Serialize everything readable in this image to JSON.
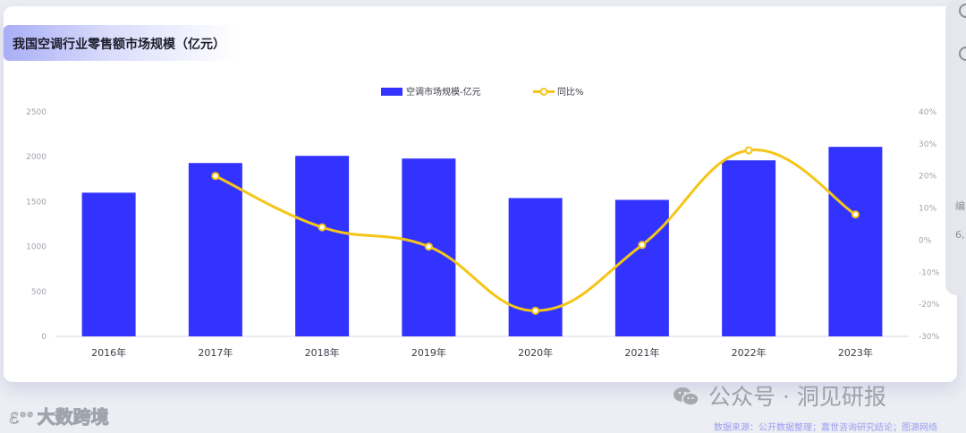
{
  "chart_data": {
    "type": "bar+line",
    "title": "我国空调行业零售额市场规模（亿元）",
    "categories": [
      "2016年",
      "2017年",
      "2018年",
      "2019年",
      "2020年",
      "2021年",
      "2022年",
      "2023年"
    ],
    "series": [
      {
        "name": "空调市场规模-亿元",
        "type": "bar",
        "axis": "left",
        "values": [
          1600,
          1930,
          2010,
          1980,
          1540,
          1520,
          1960,
          2110
        ]
      },
      {
        "name": "同比%",
        "type": "line",
        "axis": "right",
        "values": [
          null,
          20,
          4,
          -2,
          -22,
          -1.5,
          28,
          8
        ]
      }
    ],
    "ylim_left": [
      0,
      2500
    ],
    "yticks_left": [
      "0",
      "500",
      "1000",
      "1500",
      "2000",
      "2500"
    ],
    "ylim_right": [
      -30,
      40
    ],
    "yticks_right": [
      "-30%",
      "-20%",
      "-10%",
      "0%",
      "10%",
      "20%",
      "30%",
      "40%"
    ],
    "legend_position": "top-center",
    "grid": false,
    "colors": {
      "bar": "#3333ff",
      "line": "#f5c518"
    }
  },
  "watermark_left": "大数跨境",
  "watermark_right": "公众号 · 洞见研报",
  "source_note": "数据来源：公开数据整理；嘉世咨询研究结论；图源网络",
  "side_panel": {
    "text1": "编",
    "text2": "6,"
  }
}
